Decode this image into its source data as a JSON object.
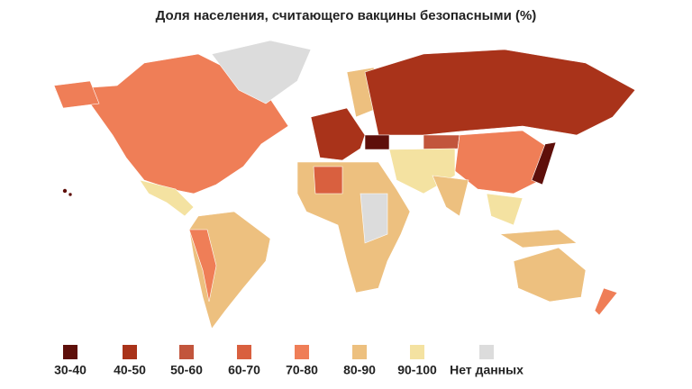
{
  "title": "Доля населения, считающего вакцины безопасными (%)",
  "legend": [
    {
      "label": "30-40",
      "color": "#5e0f0a"
    },
    {
      "label": "40-50",
      "color": "#a9331a"
    },
    {
      "label": "50-60",
      "color": "#c2553c"
    },
    {
      "label": "60-70",
      "color": "#d9603f"
    },
    {
      "label": "70-80",
      "color": "#ef7e57"
    },
    {
      "label": "80-90",
      "color": "#edc07f"
    },
    {
      "label": "90-100",
      "color": "#f4e2a1"
    },
    {
      "label": "Нет данных",
      "color": "#dcdcdc"
    }
  ]
}
